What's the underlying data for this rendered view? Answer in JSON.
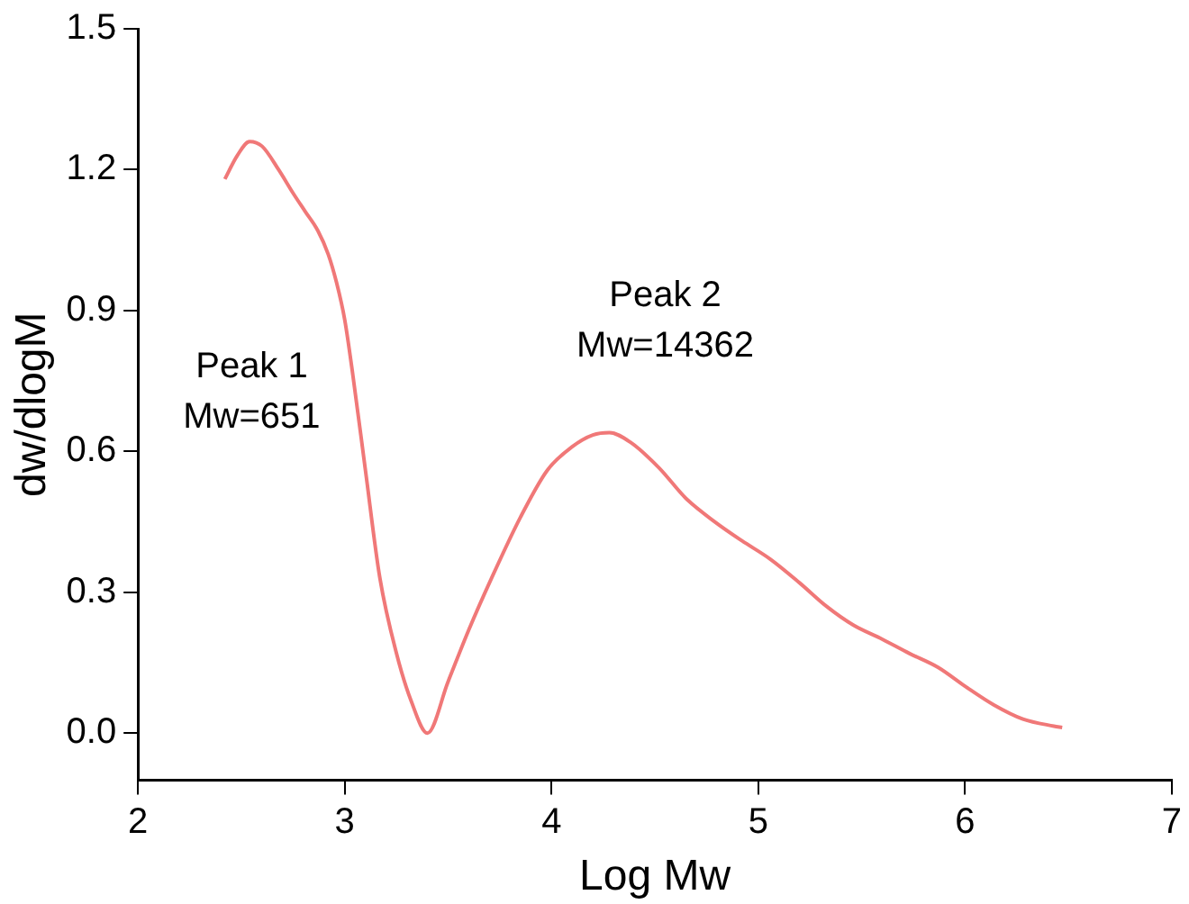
{
  "chart_data": {
    "type": "line",
    "xlabel": "Log Mw",
    "ylabel": "dw/dlogM",
    "xlim": [
      2,
      7
    ],
    "xticks": [
      2,
      3,
      4,
      5,
      6,
      7
    ],
    "ylim": [
      -0.1,
      1.5
    ],
    "yticks": [
      {
        "value": 0,
        "label": "0.0"
      },
      {
        "value": 0.3,
        "label": "0.3"
      },
      {
        "value": 0.6,
        "label": "0.6"
      },
      {
        "value": 0.9,
        "label": "0.9"
      },
      {
        "value": 1.2,
        "label": "1.2"
      },
      {
        "value": 1.5,
        "label": "1.5"
      }
    ],
    "grid": false,
    "legend": false,
    "marker": "none",
    "line_style": "solid",
    "annotations": [
      "Peak 1\nMw=651",
      "Peak 2\nMw=14362"
    ],
    "series": [
      {
        "color": "#f07878",
        "x": [
          2.42,
          2.48,
          2.54,
          2.6,
          2.68,
          2.75,
          2.81,
          2.87,
          2.92,
          2.96,
          3.0,
          3.04,
          3.1,
          3.17,
          3.25,
          3.32,
          3.4,
          3.5,
          3.6,
          3.71,
          3.85,
          3.98,
          4.1,
          4.2,
          4.28,
          4.38,
          4.52,
          4.65,
          4.79,
          4.92,
          5.06,
          5.2,
          5.33,
          5.46,
          5.6,
          5.73,
          5.87,
          6.0,
          6.14,
          6.28,
          6.43,
          6.47
        ],
        "values": [
          1.18,
          1.23,
          1.26,
          1.25,
          1.2,
          1.15,
          1.11,
          1.07,
          1.02,
          0.96,
          0.88,
          0.76,
          0.56,
          0.33,
          0.17,
          0.07,
          0.0,
          0.11,
          0.22,
          0.33,
          0.46,
          0.56,
          0.61,
          0.635,
          0.64,
          0.62,
          0.565,
          0.5,
          0.45,
          0.41,
          0.37,
          0.32,
          0.27,
          0.23,
          0.2,
          0.17,
          0.14,
          0.1,
          0.06,
          0.03,
          0.015,
          0.012
        ]
      }
    ]
  }
}
